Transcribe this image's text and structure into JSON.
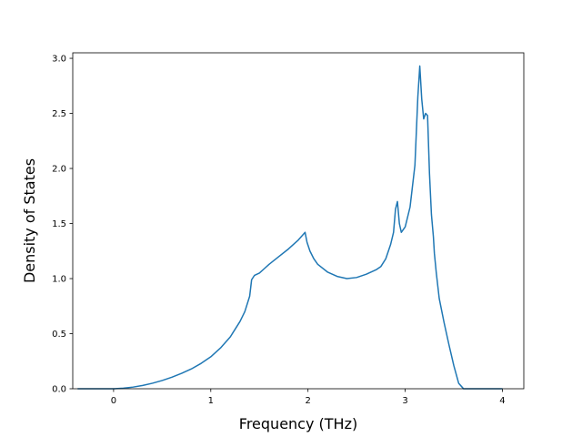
{
  "chart_data": {
    "type": "line",
    "title": "",
    "xlabel": "Frequency (THz)",
    "ylabel": "Density of States",
    "xlim": [
      -0.42,
      4.22
    ],
    "ylim": [
      0.0,
      3.05
    ],
    "x_ticks": [
      0,
      1,
      2,
      3,
      4
    ],
    "x_tick_labels": [
      "0",
      "1",
      "2",
      "3",
      "4"
    ],
    "y_ticks": [
      0.0,
      0.5,
      1.0,
      1.5,
      2.0,
      2.5,
      3.0
    ],
    "y_tick_labels": [
      "0.0",
      "0.5",
      "1.0",
      "1.5",
      "2.0",
      "2.5",
      "3.0"
    ],
    "grid": false,
    "legend": "none",
    "series": [
      {
        "color": "#1f77b4",
        "x": [
          -0.37,
          -0.2,
          0.0,
          0.1,
          0.2,
          0.3,
          0.4,
          0.5,
          0.6,
          0.7,
          0.8,
          0.9,
          1.0,
          1.1,
          1.2,
          1.3,
          1.35,
          1.4,
          1.42,
          1.45,
          1.5,
          1.55,
          1.6,
          1.7,
          1.8,
          1.9,
          1.97,
          1.99,
          2.02,
          2.06,
          2.1,
          2.2,
          2.3,
          2.4,
          2.5,
          2.6,
          2.7,
          2.75,
          2.8,
          2.85,
          2.88,
          2.9,
          2.92,
          2.94,
          2.96,
          3.0,
          3.05,
          3.1,
          3.13,
          3.15,
          3.17,
          3.19,
          3.21,
          3.23,
          3.25,
          3.27,
          3.29,
          3.3,
          3.32,
          3.35,
          3.4,
          3.45,
          3.5,
          3.55,
          3.6,
          3.62,
          3.63,
          3.65,
          3.7,
          4.0
        ],
        "y": [
          0.0,
          0.0,
          0.0,
          0.005,
          0.015,
          0.03,
          0.05,
          0.075,
          0.105,
          0.14,
          0.18,
          0.23,
          0.29,
          0.37,
          0.47,
          0.61,
          0.7,
          0.84,
          0.99,
          1.03,
          1.05,
          1.09,
          1.13,
          1.2,
          1.27,
          1.35,
          1.42,
          1.33,
          1.25,
          1.18,
          1.13,
          1.06,
          1.02,
          1.0,
          1.01,
          1.04,
          1.08,
          1.11,
          1.18,
          1.31,
          1.42,
          1.63,
          1.7,
          1.5,
          1.42,
          1.47,
          1.65,
          2.03,
          2.65,
          2.93,
          2.63,
          2.45,
          2.5,
          2.48,
          1.95,
          1.58,
          1.38,
          1.23,
          1.05,
          0.82,
          0.6,
          0.4,
          0.21,
          0.05,
          0.0,
          0.0,
          0.0,
          0.0,
          0.0,
          0.0
        ]
      }
    ]
  }
}
